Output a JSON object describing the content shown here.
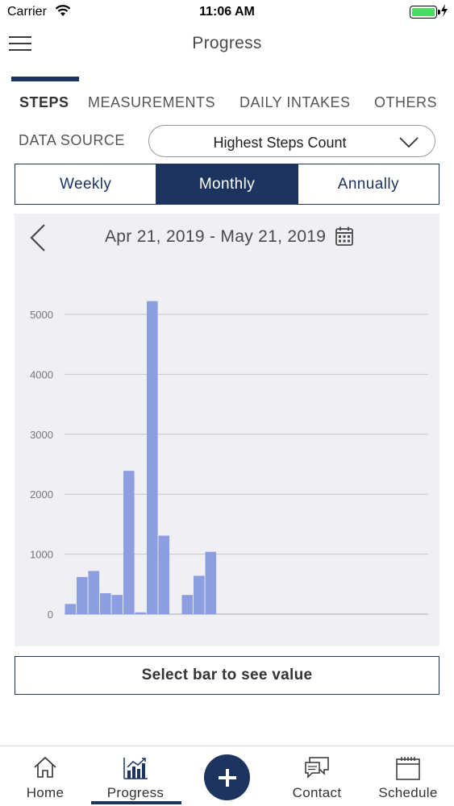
{
  "status_bar": {
    "carrier": "Carrier",
    "time": "11:06 AM",
    "battery_color": "#4cd964"
  },
  "header": {
    "title": "Progress",
    "menu_icon": "hamburger-menu-icon"
  },
  "category_tabs": [
    {
      "label": "STEPS",
      "active": true
    },
    {
      "label": "MEASUREMENTS",
      "active": false
    },
    {
      "label": "DAILY INTAKES",
      "active": false
    },
    {
      "label": "OTHERS",
      "active": false
    }
  ],
  "data_source": {
    "label": "DATA SOURCE",
    "selected": "Highest Steps Count"
  },
  "period_tabs": [
    {
      "label": "Weekly",
      "active": false
    },
    {
      "label": "Monthly",
      "active": true
    },
    {
      "label": "Annually",
      "active": false
    }
  ],
  "date_range": "Apr 21, 2019 - May 21, 2019",
  "chart_data": {
    "type": "bar",
    "title": "",
    "xlabel": "",
    "ylabel": "",
    "ylim": [
      0,
      5000
    ],
    "ytick_labels": [
      "0",
      "1000",
      "2000",
      "3000",
      "4000",
      "5000"
    ],
    "yticks": [
      0,
      1000,
      2000,
      3000,
      4000,
      5000
    ],
    "grid": true,
    "bar_color": "#8c9ee0",
    "values": [
      170,
      620,
      720,
      350,
      320,
      2390,
      30,
      5220,
      1310,
      0,
      320,
      640,
      1040,
      0,
      0,
      0,
      0,
      0,
      0,
      0,
      0,
      0,
      0,
      0,
      0,
      0,
      0,
      0,
      0,
      0,
      0
    ]
  },
  "value_box": {
    "text": "Select bar to see value"
  },
  "bottom_nav": {
    "items": [
      {
        "label": "Home",
        "icon": "home-icon",
        "active": false
      },
      {
        "label": "Progress",
        "icon": "bar-chart-icon",
        "active": true
      },
      {
        "label": "Contact",
        "icon": "chat-bubbles-icon",
        "active": false
      },
      {
        "label": "Schedule",
        "icon": "calendar-icon",
        "active": false
      }
    ],
    "fab_icon": "plus-icon"
  },
  "colors": {
    "primary": "#1d3461",
    "chart_bg": "#efeff4"
  }
}
